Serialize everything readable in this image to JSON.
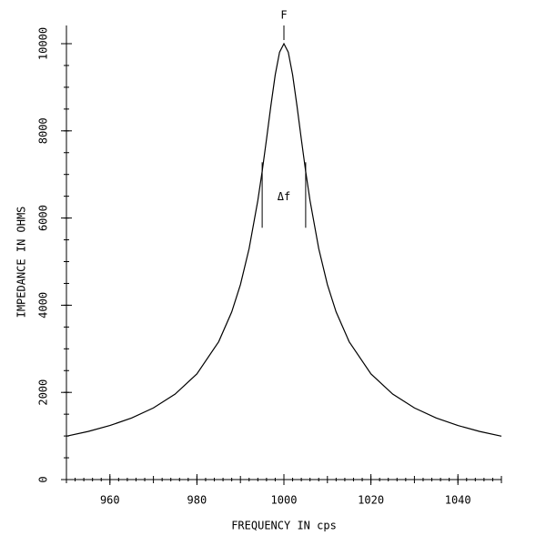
{
  "chart_data": {
    "type": "line",
    "x_label": "FREQUENCY IN cps",
    "y_label": "IMPEDANCE IN OHMS",
    "annotations": [
      "F",
      "Δf"
    ],
    "x": [
      950,
      955,
      960,
      965,
      970,
      975,
      980,
      985,
      988,
      990,
      992,
      994,
      995,
      996,
      997,
      998,
      999,
      1000,
      1001,
      1002,
      1003,
      1004,
      1005,
      1006,
      1008,
      1010,
      1012,
      1015,
      1020,
      1025,
      1030,
      1035,
      1040,
      1045,
      1050
    ],
    "series": [
      {
        "color": "#000000",
        "values": [
          995,
          1104,
          1240,
          1414,
          1644,
          1961,
          2425,
          3162,
          3846,
          4472,
          5300,
          6402,
          7071,
          7809,
          8575,
          9285,
          9806,
          10000,
          9806,
          9285,
          8575,
          7809,
          7071,
          6402,
          5300,
          4472,
          3846,
          3162,
          2425,
          1961,
          1644,
          1414,
          1240,
          1104,
          995
        ]
      }
    ],
    "xlim": [
      950,
      1050
    ],
    "ylim": [
      0,
      10000
    ],
    "xticks": [
      960,
      980,
      1000,
      1020,
      1040
    ],
    "yticks": [
      0,
      2000,
      4000,
      6000,
      8000,
      10000
    ]
  }
}
